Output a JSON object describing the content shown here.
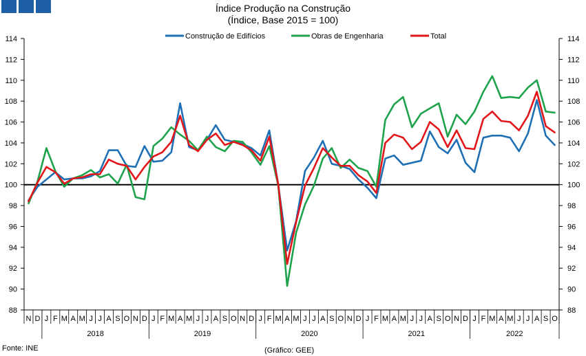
{
  "logo": {
    "color": "#1f5fa8"
  },
  "chart_data": {
    "type": "line",
    "title": "Índice Produção na Construção",
    "subtitle": "(Índice, Base 2015 = 100)",
    "xlabel": "",
    "ylabel": "",
    "ylim": [
      88,
      114
    ],
    "yticks": [
      "88",
      "90",
      "92",
      "94",
      "96",
      "98",
      "100",
      "102",
      "104",
      "106",
      "108",
      "110",
      "112",
      "114"
    ],
    "reference_line": 100,
    "grid": false,
    "legend_position": "top",
    "months": [
      "N",
      "D",
      "J",
      "F",
      "M",
      "A",
      "M",
      "J",
      "J",
      "A",
      "S",
      "O",
      "N",
      "D",
      "J",
      "F",
      "M",
      "A",
      "M",
      "J",
      "J",
      "A",
      "S",
      "O",
      "N",
      "D",
      "J",
      "F",
      "M",
      "A",
      "M",
      "J",
      "J",
      "A",
      "S",
      "O",
      "N",
      "D",
      "J",
      "F",
      "M",
      "A",
      "M",
      "J",
      "J",
      "A",
      "S",
      "O",
      "N",
      "D",
      "J",
      "F",
      "M",
      "A",
      "M",
      "J",
      "J",
      "A",
      "S",
      "O"
    ],
    "years": [
      {
        "label": "2018",
        "start": 2,
        "end": 13
      },
      {
        "label": "2019",
        "start": 14,
        "end": 25
      },
      {
        "label": "2020",
        "start": 26,
        "end": 37
      },
      {
        "label": "2021",
        "start": 38,
        "end": 49
      },
      {
        "label": "2022",
        "start": 50,
        "end": 59
      }
    ],
    "series": [
      {
        "name": "Construção de Edifícios",
        "color": "#1f6fb5",
        "values": [
          98.5,
          99.8,
          100.5,
          101.2,
          100.5,
          100.6,
          100.6,
          100.8,
          101.3,
          103.3,
          103.3,
          101.8,
          101.7,
          103.7,
          102.2,
          102.3,
          103.1,
          107.8,
          103.6,
          103.3,
          104.3,
          105.7,
          104.3,
          104.1,
          103.9,
          103.5,
          102.8,
          105.2,
          100.0,
          93.7,
          96.5,
          101.3,
          102.6,
          104.2,
          102.0,
          101.8,
          101.5,
          100.5,
          99.7,
          98.7,
          102.5,
          102.8,
          101.9,
          102.1,
          102.3,
          105.1,
          103.6,
          103.0,
          104.3,
          102.1,
          101.2,
          104.5,
          104.7,
          104.7,
          104.5,
          103.2,
          104.9,
          108.1,
          104.7,
          103.8
        ]
      },
      {
        "name": "Obras de Engenharia",
        "color": "#1ea24b",
        "values": [
          98.2,
          100.3,
          103.5,
          101.3,
          99.8,
          100.6,
          100.9,
          101.4,
          100.7,
          101.0,
          100.1,
          101.9,
          98.8,
          98.6,
          103.7,
          104.4,
          105.5,
          104.8,
          104.2,
          103.3,
          104.6,
          103.6,
          103.2,
          104.2,
          104.1,
          103.1,
          101.9,
          103.7,
          99.9,
          90.3,
          95.4,
          98.1,
          99.9,
          102.5,
          103.5,
          101.6,
          102.4,
          101.6,
          101.3,
          99.8,
          106.2,
          107.7,
          108.4,
          105.5,
          106.8,
          107.3,
          107.8,
          104.6,
          106.7,
          105.8,
          107.0,
          108.9,
          110.4,
          108.3,
          108.4,
          108.3,
          109.3,
          110.0,
          107.0,
          106.9
        ]
      },
      {
        "name": "Total",
        "color": "#e2161a",
        "values": [
          98.4,
          100.2,
          101.7,
          101.2,
          100.1,
          100.6,
          100.7,
          101.0,
          101.0,
          102.4,
          102.0,
          101.8,
          100.5,
          101.7,
          102.7,
          103.1,
          104.1,
          106.6,
          103.8,
          103.2,
          104.3,
          104.9,
          103.8,
          104.1,
          103.8,
          103.3,
          102.3,
          104.6,
          100.0,
          92.4,
          96.4,
          99.9,
          101.6,
          103.5,
          102.6,
          101.8,
          101.8,
          100.9,
          100.3,
          99.2,
          104.0,
          104.8,
          104.5,
          103.4,
          104.1,
          106.0,
          105.3,
          103.6,
          105.2,
          103.5,
          103.4,
          106.3,
          107.0,
          106.1,
          106.0,
          105.2,
          106.6,
          108.9,
          105.6,
          105.0
        ]
      }
    ],
    "source": "Fonte: INE",
    "credit": "(Gráfico: GEE)"
  }
}
